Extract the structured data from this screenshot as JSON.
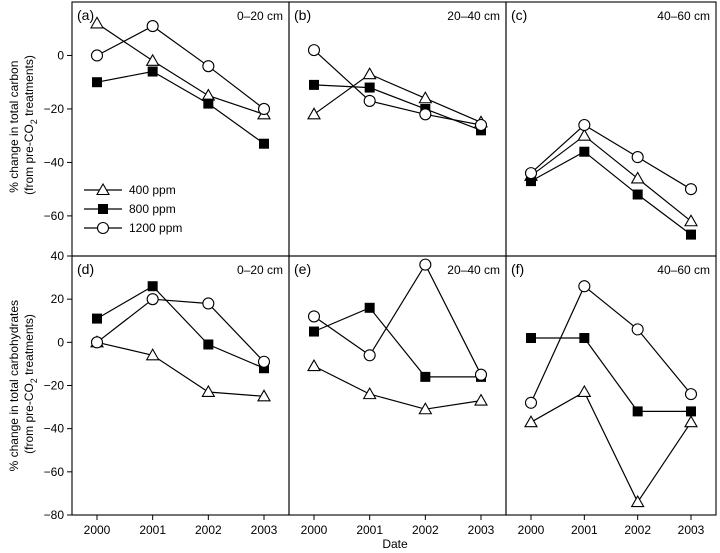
{
  "chart_data": {
    "type": "line",
    "x": [
      "2000",
      "2001",
      "2002",
      "2003"
    ],
    "xlabel": "Date",
    "rows": [
      {
        "ylabel_lines": [
          "% change in total carbon",
          "(from pre-CO",
          "2",
          " treatments)"
        ],
        "ylim": [
          -75,
          20
        ],
        "yticks": [
          "0",
          "-20",
          "-40",
          "-60"
        ]
      },
      {
        "ylabel_lines": [
          "% change in total carbohydrates",
          "(from pre-CO",
          "2",
          " treatments)"
        ],
        "ylim": [
          -80,
          40
        ],
        "yticks": [
          "40",
          "20",
          "0",
          "-20",
          "-40",
          "-60",
          "-80"
        ]
      }
    ],
    "legend": {
      "placement": "panel (a), bottom-left",
      "entries": [
        {
          "name": "400 ppm",
          "marker": "open-triangle"
        },
        {
          "name": "800 ppm",
          "marker": "filled-square"
        },
        {
          "name": "1200 ppm",
          "marker": "open-circle"
        }
      ]
    },
    "panels": [
      {
        "label": "(a)",
        "depth": "0–20 cm",
        "row": 0,
        "col": 0,
        "series": [
          {
            "name": "400 ppm",
            "values": [
              12,
              -2,
              -15,
              -22
            ]
          },
          {
            "name": "800 ppm",
            "values": [
              -10,
              -6,
              -18,
              -33
            ]
          },
          {
            "name": "1200 ppm",
            "values": [
              0,
              11,
              -4,
              -20
            ]
          }
        ]
      },
      {
        "label": "(b)",
        "depth": "20–40 cm",
        "row": 0,
        "col": 1,
        "series": [
          {
            "name": "400 ppm",
            "values": [
              -22,
              -7,
              -16,
              -25
            ]
          },
          {
            "name": "800 ppm",
            "values": [
              -11,
              -12,
              -20,
              -28
            ]
          },
          {
            "name": "1200 ppm",
            "values": [
              2,
              -17,
              -22,
              -26
            ]
          }
        ]
      },
      {
        "label": "(c)",
        "depth": "40–60 cm",
        "row": 0,
        "col": 2,
        "series": [
          {
            "name": "400 ppm",
            "values": [
              -45,
              -30,
              -46,
              -62
            ]
          },
          {
            "name": "800 ppm",
            "values": [
              -47,
              -36,
              -52,
              -67
            ]
          },
          {
            "name": "1200 ppm",
            "values": [
              -44,
              -26,
              -38,
              -50
            ]
          }
        ]
      },
      {
        "label": "(d)",
        "depth": "0–20 cm",
        "row": 1,
        "col": 0,
        "series": [
          {
            "name": "400 ppm",
            "values": [
              0,
              -6,
              -23,
              -25
            ]
          },
          {
            "name": "800 ppm",
            "values": [
              11,
              26,
              -1,
              -12
            ]
          },
          {
            "name": "1200 ppm",
            "values": [
              0,
              20,
              18,
              -9
            ]
          }
        ]
      },
      {
        "label": "(e)",
        "depth": "20–40 cm",
        "row": 1,
        "col": 1,
        "series": [
          {
            "name": "400 ppm",
            "values": [
              -11,
              -24,
              -31,
              -27
            ]
          },
          {
            "name": "800 ppm",
            "values": [
              5,
              16,
              -16,
              -16
            ]
          },
          {
            "name": "1200 ppm",
            "values": [
              12,
              -6,
              36,
              -15
            ]
          }
        ]
      },
      {
        "label": "(f)",
        "depth": "40–60 cm",
        "row": 1,
        "col": 2,
        "series": [
          {
            "name": "400 ppm",
            "values": [
              -37,
              -23,
              -74,
              -37
            ]
          },
          {
            "name": "800 ppm",
            "values": [
              2,
              2,
              -32,
              -32
            ]
          },
          {
            "name": "1200 ppm",
            "values": [
              -28,
              26,
              6,
              -24
            ]
          }
        ]
      }
    ]
  }
}
